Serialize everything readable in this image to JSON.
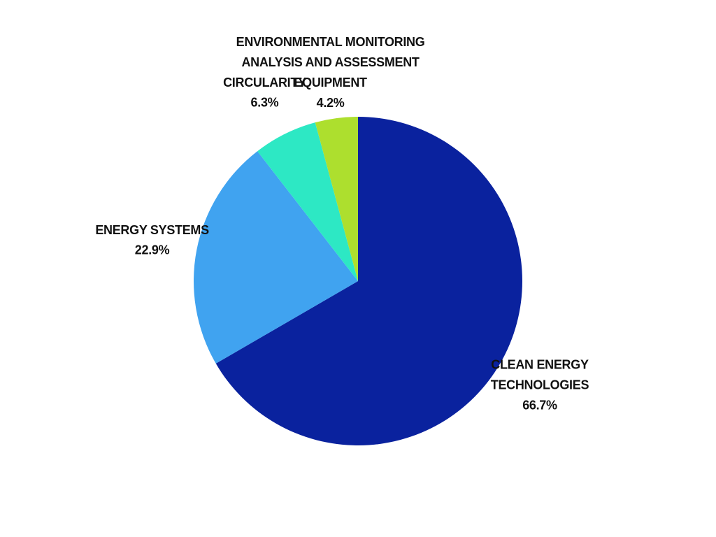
{
  "chart_data": {
    "type": "pie",
    "categories": [
      "CLEAN ENERGY TECHNOLOGIES",
      "ENERGY SYSTEMS",
      "CIRCULARITY",
      "ENVIRONMENTAL MONITORING ANALYSIS AND ASSESSMENT EQUIPMENT"
    ],
    "values": [
      66.7,
      22.9,
      6.3,
      4.2
    ],
    "value_labels": [
      "66.7%",
      "22.9%",
      "6.3%",
      "4.2%"
    ],
    "colors": [
      "#0a229e",
      "#40a3f0",
      "#2de8c4",
      "#addf2e"
    ]
  }
}
